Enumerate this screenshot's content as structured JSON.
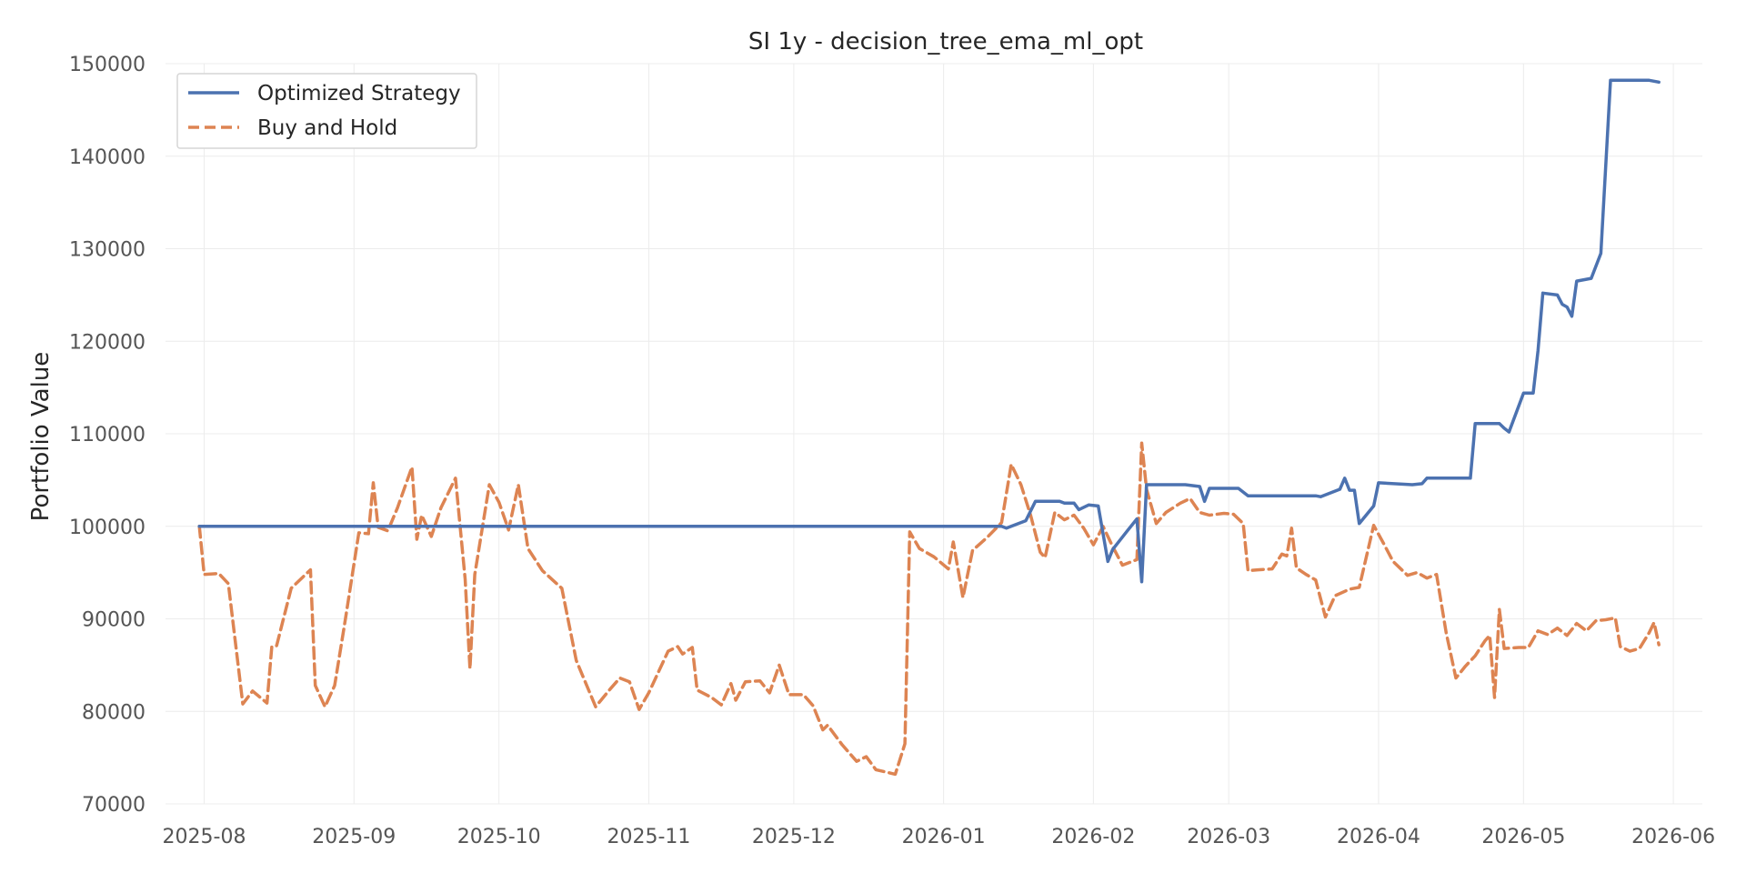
{
  "chart_data": {
    "type": "line",
    "title": "SI 1y - decision_tree_ema_ml_opt",
    "xlabel": "",
    "ylabel": "Portfolio Value",
    "ylim": [
      70000,
      150000
    ],
    "y_ticks": [
      70000,
      80000,
      90000,
      100000,
      110000,
      120000,
      130000,
      140000,
      150000
    ],
    "y_tick_labels": [
      "70000",
      "80000",
      "90000",
      "100000",
      "110000",
      "120000",
      "130000",
      "140000",
      "150000"
    ],
    "xlim": [
      "2025-07-24",
      "2026-06-07"
    ],
    "x_ticks": [
      "2025-08-01",
      "2025-09-01",
      "2025-10-01",
      "2025-11-01",
      "2025-12-01",
      "2026-01-01",
      "2026-02-01",
      "2026-03-01",
      "2026-04-01",
      "2026-05-01",
      "2026-06-01"
    ],
    "x_tick_labels": [
      "2025-08",
      "2025-09",
      "2025-10",
      "2025-11",
      "2025-12",
      "2026-01",
      "2026-02",
      "2026-03",
      "2026-04",
      "2026-05",
      "2026-06"
    ],
    "grid": true,
    "legend_position": "upper-left",
    "series": [
      {
        "name": "Optimized Strategy",
        "color": "#4c72b0",
        "style": "solid",
        "points": [
          [
            "2025-07-31",
            100000
          ],
          [
            "2026-01-13",
            100000
          ],
          [
            "2026-01-14",
            99800
          ],
          [
            "2026-01-18",
            100600
          ],
          [
            "2026-01-20",
            102700
          ],
          [
            "2026-01-25",
            102700
          ],
          [
            "2026-01-26",
            102500
          ],
          [
            "2026-01-28",
            102500
          ],
          [
            "2026-01-29",
            101800
          ],
          [
            "2026-01-31",
            102300
          ],
          [
            "2026-02-02",
            102200
          ],
          [
            "2026-02-04",
            96200
          ],
          [
            "2026-02-05",
            97500
          ],
          [
            "2026-02-08",
            99500
          ],
          [
            "2026-02-10",
            100800
          ],
          [
            "2026-02-11",
            94000
          ],
          [
            "2026-02-12",
            104500
          ],
          [
            "2026-02-20",
            104500
          ],
          [
            "2026-02-23",
            104300
          ],
          [
            "2026-02-24",
            102700
          ],
          [
            "2026-02-25",
            104100
          ],
          [
            "2026-03-03",
            104100
          ],
          [
            "2026-03-05",
            103300
          ],
          [
            "2026-03-19",
            103300
          ],
          [
            "2026-03-20",
            103200
          ],
          [
            "2026-03-24",
            104000
          ],
          [
            "2026-03-25",
            105200
          ],
          [
            "2026-03-26",
            103900
          ],
          [
            "2026-03-27",
            103900
          ],
          [
            "2026-03-28",
            100300
          ],
          [
            "2026-03-31",
            102200
          ],
          [
            "2026-04-01",
            104700
          ],
          [
            "2026-04-08",
            104500
          ],
          [
            "2026-04-10",
            104600
          ],
          [
            "2026-04-11",
            105200
          ],
          [
            "2026-04-20",
            105200
          ],
          [
            "2026-04-21",
            111100
          ],
          [
            "2026-04-26",
            111100
          ],
          [
            "2026-04-27",
            110600
          ],
          [
            "2026-04-28",
            110200
          ],
          [
            "2026-05-01",
            114400
          ],
          [
            "2026-05-03",
            114400
          ],
          [
            "2026-05-04",
            119000
          ],
          [
            "2026-05-05",
            125200
          ],
          [
            "2026-05-08",
            125000
          ],
          [
            "2026-05-09",
            124000
          ],
          [
            "2026-05-10",
            123700
          ],
          [
            "2026-05-11",
            122700
          ],
          [
            "2026-05-12",
            126500
          ],
          [
            "2026-05-15",
            126800
          ],
          [
            "2026-05-17",
            129500
          ],
          [
            "2026-05-19",
            148200
          ],
          [
            "2026-05-27",
            148200
          ],
          [
            "2026-05-29",
            148000
          ]
        ]
      },
      {
        "name": "Buy and Hold",
        "color": "#dd8452",
        "style": "dashed",
        "points": [
          [
            "2025-07-31",
            100000
          ],
          [
            "2025-08-01",
            94800
          ],
          [
            "2025-08-04",
            94900
          ],
          [
            "2025-08-06",
            93800
          ],
          [
            "2025-08-09",
            80800
          ],
          [
            "2025-08-11",
            82200
          ],
          [
            "2025-08-14",
            80900
          ],
          [
            "2025-08-15",
            87000
          ],
          [
            "2025-08-16",
            87100
          ],
          [
            "2025-08-19",
            93300
          ],
          [
            "2025-08-21",
            94300
          ],
          [
            "2025-08-23",
            95300
          ],
          [
            "2025-08-24",
            82800
          ],
          [
            "2025-08-26",
            80500
          ],
          [
            "2025-08-28",
            82800
          ],
          [
            "2025-08-30",
            89200
          ],
          [
            "2025-09-02",
            99300
          ],
          [
            "2025-09-04",
            99200
          ],
          [
            "2025-09-05",
            104700
          ],
          [
            "2025-09-06",
            99900
          ],
          [
            "2025-09-08",
            99500
          ],
          [
            "2025-09-10",
            102000
          ],
          [
            "2025-09-13",
            106400
          ],
          [
            "2025-09-14",
            98600
          ],
          [
            "2025-09-15",
            101200
          ],
          [
            "2025-09-17",
            98900
          ],
          [
            "2025-09-19",
            102000
          ],
          [
            "2025-09-22",
            105200
          ],
          [
            "2025-09-24",
            94300
          ],
          [
            "2025-09-25",
            84600
          ],
          [
            "2025-09-26",
            94800
          ],
          [
            "2025-09-29",
            104500
          ],
          [
            "2025-10-01",
            102600
          ],
          [
            "2025-10-03",
            99600
          ],
          [
            "2025-10-05",
            104500
          ],
          [
            "2025-10-07",
            97600
          ],
          [
            "2025-10-10",
            95200
          ],
          [
            "2025-10-14",
            93300
          ],
          [
            "2025-10-17",
            85500
          ],
          [
            "2025-10-21",
            80500
          ],
          [
            "2025-10-24",
            82400
          ],
          [
            "2025-10-26",
            83600
          ],
          [
            "2025-10-28",
            83200
          ],
          [
            "2025-10-30",
            80200
          ],
          [
            "2025-11-01",
            82000
          ],
          [
            "2025-11-05",
            86500
          ],
          [
            "2025-11-07",
            87000
          ],
          [
            "2025-11-08",
            86200
          ],
          [
            "2025-11-10",
            86900
          ],
          [
            "2025-11-11",
            82300
          ],
          [
            "2025-11-14",
            81500
          ],
          [
            "2025-11-16",
            80700
          ],
          [
            "2025-11-18",
            83000
          ],
          [
            "2025-11-19",
            81200
          ],
          [
            "2025-11-21",
            83200
          ],
          [
            "2025-11-24",
            83300
          ],
          [
            "2025-11-26",
            82000
          ],
          [
            "2025-11-28",
            85000
          ],
          [
            "2025-11-30",
            81800
          ],
          [
            "2025-12-03",
            81800
          ],
          [
            "2025-12-05",
            80600
          ],
          [
            "2025-12-07",
            78000
          ],
          [
            "2025-12-08",
            78500
          ],
          [
            "2025-12-11",
            76400
          ],
          [
            "2025-12-14",
            74600
          ],
          [
            "2025-12-16",
            75100
          ],
          [
            "2025-12-18",
            73700
          ],
          [
            "2025-12-22",
            73200
          ],
          [
            "2025-12-24",
            76500
          ],
          [
            "2025-12-25",
            99400
          ],
          [
            "2025-12-27",
            97600
          ],
          [
            "2025-12-30",
            96700
          ],
          [
            "2026-01-02",
            95400
          ],
          [
            "2026-01-03",
            98300
          ],
          [
            "2026-01-05",
            92300
          ],
          [
            "2026-01-07",
            97400
          ],
          [
            "2026-01-10",
            98800
          ],
          [
            "2026-01-13",
            100400
          ],
          [
            "2026-01-15",
            106700
          ],
          [
            "2026-01-17",
            104500
          ],
          [
            "2026-01-19",
            101200
          ],
          [
            "2026-01-21",
            97200
          ],
          [
            "2026-01-22",
            96600
          ],
          [
            "2026-01-24",
            101500
          ],
          [
            "2026-01-26",
            100700
          ],
          [
            "2026-01-28",
            101200
          ],
          [
            "2026-01-30",
            99800
          ],
          [
            "2026-02-01",
            98000
          ],
          [
            "2026-02-03",
            100000
          ],
          [
            "2026-02-05",
            97800
          ],
          [
            "2026-02-07",
            95800
          ],
          [
            "2026-02-10",
            96400
          ],
          [
            "2026-02-11",
            109000
          ],
          [
            "2026-02-12",
            104000
          ],
          [
            "2026-02-14",
            100300
          ],
          [
            "2026-02-16",
            101500
          ],
          [
            "2026-02-19",
            102500
          ],
          [
            "2026-02-21",
            103000
          ],
          [
            "2026-02-23",
            101500
          ],
          [
            "2026-02-25",
            101200
          ],
          [
            "2026-02-28",
            101400
          ],
          [
            "2026-03-02",
            101300
          ],
          [
            "2026-03-04",
            100300
          ],
          [
            "2026-03-05",
            95200
          ],
          [
            "2026-03-07",
            95300
          ],
          [
            "2026-03-10",
            95400
          ],
          [
            "2026-03-12",
            97000
          ],
          [
            "2026-03-13",
            96800
          ],
          [
            "2026-03-14",
            99800
          ],
          [
            "2026-03-15",
            95500
          ],
          [
            "2026-03-17",
            94800
          ],
          [
            "2026-03-19",
            94200
          ],
          [
            "2026-03-21",
            90200
          ],
          [
            "2026-03-23",
            92500
          ],
          [
            "2026-03-26",
            93200
          ],
          [
            "2026-03-28",
            93400
          ],
          [
            "2026-03-31",
            100100
          ],
          [
            "2026-04-02",
            98200
          ],
          [
            "2026-04-04",
            96200
          ],
          [
            "2026-04-07",
            94700
          ],
          [
            "2026-04-09",
            95000
          ],
          [
            "2026-04-11",
            94400
          ],
          [
            "2026-04-13",
            94800
          ],
          [
            "2026-04-15",
            88500
          ],
          [
            "2026-04-17",
            83600
          ],
          [
            "2026-04-19",
            84900
          ],
          [
            "2026-04-21",
            86000
          ],
          [
            "2026-04-23",
            87600
          ],
          [
            "2026-04-24",
            88200
          ],
          [
            "2026-04-25",
            81500
          ],
          [
            "2026-04-26",
            91000
          ],
          [
            "2026-04-27",
            86800
          ],
          [
            "2026-04-30",
            86900
          ],
          [
            "2026-05-02",
            86900
          ],
          [
            "2026-05-04",
            88700
          ],
          [
            "2026-05-06",
            88300
          ],
          [
            "2026-05-08",
            89000
          ],
          [
            "2026-05-10",
            88200
          ],
          [
            "2026-05-12",
            89500
          ],
          [
            "2026-05-14",
            88700
          ],
          [
            "2026-05-16",
            89800
          ],
          [
            "2026-05-18",
            89900
          ],
          [
            "2026-05-20",
            90100
          ],
          [
            "2026-05-21",
            87000
          ],
          [
            "2026-05-23",
            86500
          ],
          [
            "2026-05-25",
            86800
          ],
          [
            "2026-05-27",
            88500
          ],
          [
            "2026-05-28",
            89600
          ],
          [
            "2026-05-29",
            87200
          ]
        ]
      }
    ]
  }
}
